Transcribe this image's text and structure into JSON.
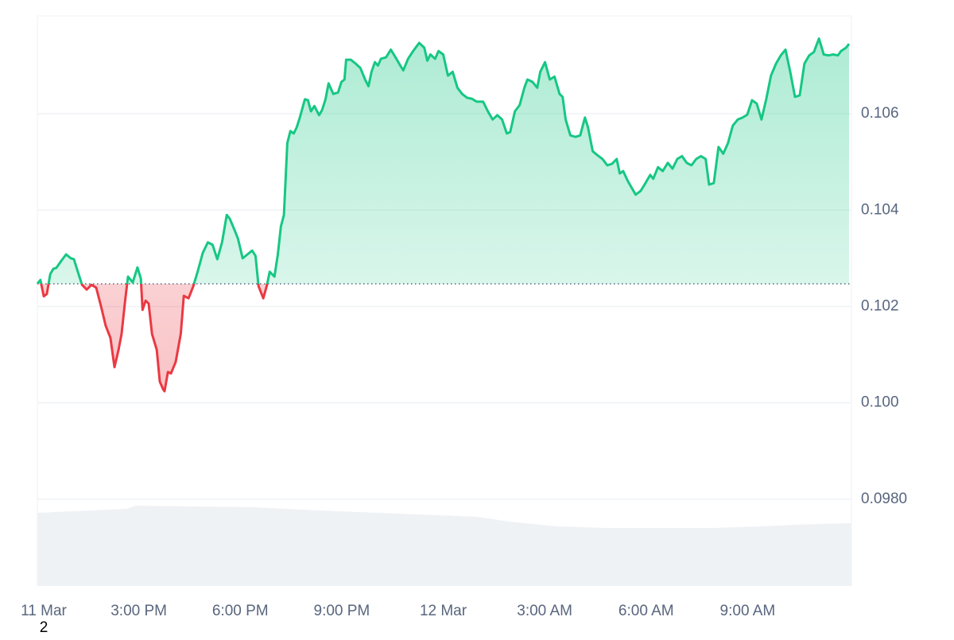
{
  "chart_data": {
    "type": "line",
    "x": [
      0,
      0.09,
      0.19,
      0.28,
      0.38,
      0.47,
      0.56,
      0.71,
      0.85,
      0.99,
      1.08,
      1.22,
      1.32,
      1.46,
      1.6,
      1.74,
      1.88,
      2.02,
      2.16,
      2.28,
      2.4,
      2.49,
      2.59,
      2.68,
      2.82,
      2.96,
      3.06,
      3.11,
      3.2,
      3.29,
      3.39,
      3.53,
      3.62,
      3.72,
      3.76,
      3.86,
      3.95,
      4.09,
      4.24,
      4.33,
      4.47,
      4.61,
      4.75,
      4.89,
      5.04,
      5.18,
      5.32,
      5.46,
      5.6,
      5.69,
      5.84,
      5.93,
      6.07,
      6.21,
      6.35,
      6.45,
      6.54,
      6.68,
      6.78,
      6.87,
      7.01,
      7.11,
      7.2,
      7.29,
      7.39,
      7.48,
      7.58,
      7.67,
      7.76,
      7.91,
      8,
      8.09,
      8.19,
      8.33,
      8.42,
      8.52,
      8.61,
      8.75,
      8.89,
      8.99,
      9.08,
      9.13,
      9.27,
      9.41,
      9.55,
      9.69,
      9.79,
      9.88,
      9.98,
      10.07,
      10.16,
      10.31,
      10.45,
      10.59,
      10.73,
      10.82,
      10.96,
      11.11,
      11.29,
      11.44,
      11.53,
      11.62,
      11.76,
      11.86,
      12,
      12.14,
      12.28,
      12.42,
      12.56,
      12.71,
      12.85,
      12.99,
      13.18,
      13.32,
      13.46,
      13.6,
      13.74,
      13.88,
      13.98,
      14.12,
      14.26,
      14.4,
      14.49,
      14.64,
      14.78,
      14.87,
      15.01,
      15.15,
      15.29,
      15.44,
      15.53,
      15.62,
      15.76,
      15.91,
      16.05,
      16.19,
      16.28,
      16.42,
      16.56,
      16.71,
      16.85,
      16.99,
      17.13,
      17.22,
      17.32,
      17.46,
      17.6,
      17.69,
      17.84,
      17.98,
      18.12,
      18.21,
      18.35,
      18.49,
      18.64,
      18.78,
      18.92,
      19.06,
      19.2,
      19.34,
      19.48,
      19.62,
      19.76,
      19.86,
      20,
      20.14,
      20.28,
      20.42,
      20.56,
      20.71,
      20.85,
      20.99,
      21.13,
      21.27,
      21.41,
      21.55,
      21.69,
      21.84,
      21.98,
      22.12,
      22.26,
      22.4,
      22.54,
      22.68,
      22.82,
      22.96,
      23.11,
      23.25,
      23.39,
      23.53,
      23.67,
      23.76,
      23.91,
      24
    ],
    "values": [
      0.10247,
      0.10255,
      0.10221,
      0.10226,
      0.10267,
      0.10278,
      0.1028,
      0.10295,
      0.10308,
      0.103,
      0.10298,
      0.10267,
      0.10245,
      0.10235,
      0.10245,
      0.10239,
      0.10201,
      0.1016,
      0.10135,
      0.10074,
      0.1011,
      0.10143,
      0.10209,
      0.10262,
      0.1025,
      0.10281,
      0.10258,
      0.10193,
      0.10212,
      0.10206,
      0.10143,
      0.1011,
      0.10044,
      0.10028,
      0.10024,
      0.10064,
      0.10061,
      0.10085,
      0.10143,
      0.10222,
      0.10217,
      0.10242,
      0.10275,
      0.10311,
      0.10333,
      0.10328,
      0.10298,
      0.10333,
      0.1039,
      0.10382,
      0.10357,
      0.10341,
      0.103,
      0.10308,
      0.10316,
      0.10305,
      0.10242,
      0.10217,
      0.10242,
      0.10272,
      0.10262,
      0.10308,
      0.10366,
      0.1039,
      0.10539,
      0.10564,
      0.10559,
      0.10572,
      0.10592,
      0.1063,
      0.10628,
      0.10605,
      0.10616,
      0.10597,
      0.10608,
      0.1063,
      0.10663,
      0.10641,
      0.10644,
      0.10666,
      0.10671,
      0.10712,
      0.10712,
      0.10704,
      0.10695,
      0.10671,
      0.10657,
      0.10687,
      0.10707,
      0.107,
      0.10714,
      0.10717,
      0.10733,
      0.10717,
      0.107,
      0.1069,
      0.10714,
      0.1073,
      0.10747,
      0.10737,
      0.1071,
      0.10723,
      0.10714,
      0.1073,
      0.10723,
      0.10679,
      0.10687,
      0.10654,
      0.10641,
      0.10633,
      0.10631,
      0.10625,
      0.10625,
      0.10605,
      0.10588,
      0.10597,
      0.10588,
      0.10559,
      0.10562,
      0.10605,
      0.10618,
      0.10654,
      0.10671,
      0.10666,
      0.10654,
      0.10687,
      0.10707,
      0.10671,
      0.10677,
      0.10641,
      0.10635,
      0.10588,
      0.10555,
      0.10552,
      0.10555,
      0.10592,
      0.10572,
      0.10522,
      0.10514,
      0.10506,
      0.10493,
      0.10496,
      0.10506,
      0.10476,
      0.10481,
      0.1046,
      0.10443,
      0.10432,
      0.1044,
      0.10456,
      0.10473,
      0.10465,
      0.10489,
      0.10481,
      0.10498,
      0.10486,
      0.10506,
      0.10512,
      0.10498,
      0.10493,
      0.10506,
      0.10512,
      0.10506,
      0.10453,
      0.10456,
      0.10531,
      0.10517,
      0.10539,
      0.10575,
      0.10588,
      0.10592,
      0.10598,
      0.10628,
      0.10621,
      0.10588,
      0.1063,
      0.10679,
      0.10704,
      0.10721,
      0.10733,
      0.10687,
      0.10635,
      0.10638,
      0.10704,
      0.10721,
      0.10728,
      0.10756,
      0.10723,
      0.10721,
      0.10723,
      0.10721,
      0.1073,
      0.10737,
      0.10745
    ],
    "color_up": "#16c784",
    "color_down": "#ea3943",
    "xlim": [
      0,
      24.07
    ],
    "xticks": [
      {
        "value": 0,
        "label": "11 Mar"
      },
      {
        "value": 3,
        "label": "3:00 PM"
      },
      {
        "value": 6,
        "label": "6:00 PM"
      },
      {
        "value": 9,
        "label": "9:00 PM"
      },
      {
        "value": 12,
        "label": "12 Mar"
      },
      {
        "value": 15,
        "label": "3:00 AM"
      },
      {
        "value": 18,
        "label": "6:00 AM"
      },
      {
        "value": 21,
        "label": "9:00 AM"
      }
    ],
    "ylim": [
      0.0962,
      0.10803
    ],
    "yticks": [
      {
        "value": 0.098,
        "label": "0.0980"
      },
      {
        "value": 0.1,
        "label": "0.100"
      },
      0.102,
      0.104,
      0.106
    ],
    "grid": true,
    "annotation": "2"
  }
}
